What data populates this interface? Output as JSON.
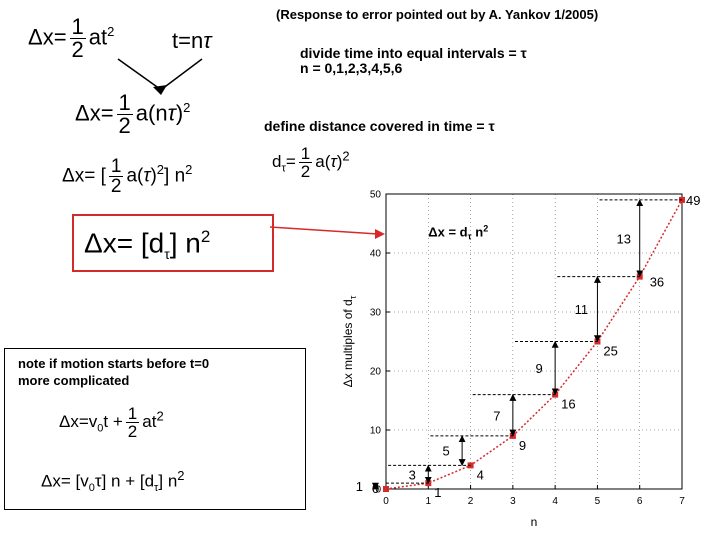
{
  "header_note": "(Response to error pointed out by A. Yankov 1/2005)",
  "left": {
    "eq1_lhs": "Δx=",
    "half_num": "1",
    "half_den": "2",
    "eq1_rhs": "at",
    "sq": "2",
    "t_eq": "t=n",
    "tau": "τ",
    "eq2_tail": "a(n",
    "eq3_lhs": "Δx= [",
    "eq3_mid": "a(",
    "eq3_close": ")",
    "eq3_end": "]  n",
    "boxed_lhs": "Δx= [d",
    "boxed_sub": "τ",
    "boxed_rhs": "]  n"
  },
  "right": {
    "divide_line": "divide time into equal intervals = τ",
    "n_line": "n = 0,1,2,3,4,5,6",
    "define_line": "define distance covered in time = τ",
    "d_sym": "d",
    "d_sub": "τ",
    "d_eq": "=",
    "d_rhs_a": "a(",
    "d_rhs_tau": "τ",
    "d_rhs_close": ")"
  },
  "note_box": {
    "line1": "note if motion starts before t=0",
    "line2": "more complicated",
    "eq_a_lhs": "Δx=v",
    "eq_a_sub": "0",
    "eq_a_mid": "t +",
    "eq_a_rhs": "at",
    "eq_b_1": "Δx= [v",
    "eq_b_sub": "0",
    "eq_b_2": "τ] n + [d",
    "eq_b_3": "τ",
    "eq_b_4": "]  n"
  },
  "chart_data": {
    "type": "scatter",
    "annotation": "Δx = d",
    "annotation_sub": "τ",
    "annotation_tail": " n",
    "annotation_sup": "2",
    "xlabel": "n",
    "ylabel": "Δx multiples of d",
    "ylabel_sub": "τ",
    "xlim": [
      0,
      7
    ],
    "ylim": [
      0,
      50
    ],
    "xticks": [
      0,
      1,
      2,
      3,
      4,
      5,
      6,
      7
    ],
    "yticks": [
      0,
      10,
      20,
      30,
      40,
      50
    ],
    "grid": true,
    "points": [
      {
        "x": 0,
        "y": 0,
        "label": "0"
      },
      {
        "x": 1,
        "y": 1,
        "label": "1"
      },
      {
        "x": 2,
        "y": 4,
        "label": "4"
      },
      {
        "x": 3,
        "y": 9,
        "label": "9"
      },
      {
        "x": 4,
        "y": 16,
        "label": "16"
      },
      {
        "x": 5,
        "y": 25,
        "label": "25"
      },
      {
        "x": 6,
        "y": 36,
        "label": "36"
      },
      {
        "x": 7,
        "y": 49,
        "label": "49"
      }
    ],
    "differences": [
      {
        "label": "1",
        "from": 0,
        "to": 1,
        "x": -0.25
      },
      {
        "label": "3",
        "from": 1,
        "to": 4,
        "x": 1.0
      },
      {
        "label": "5",
        "from": 4,
        "to": 9,
        "x": 1.8
      },
      {
        "label": "7",
        "from": 9,
        "to": 16,
        "x": 3.0
      },
      {
        "label": "9",
        "from": 16,
        "to": 25,
        "x": 4.0
      },
      {
        "label": "11",
        "from": 25,
        "to": 36,
        "x": 5.0
      },
      {
        "label": "13",
        "from": 36,
        "to": 49,
        "x": 6.0
      }
    ],
    "colors": {
      "series": "#d62a2a",
      "arrow": "#d62a2a"
    }
  }
}
